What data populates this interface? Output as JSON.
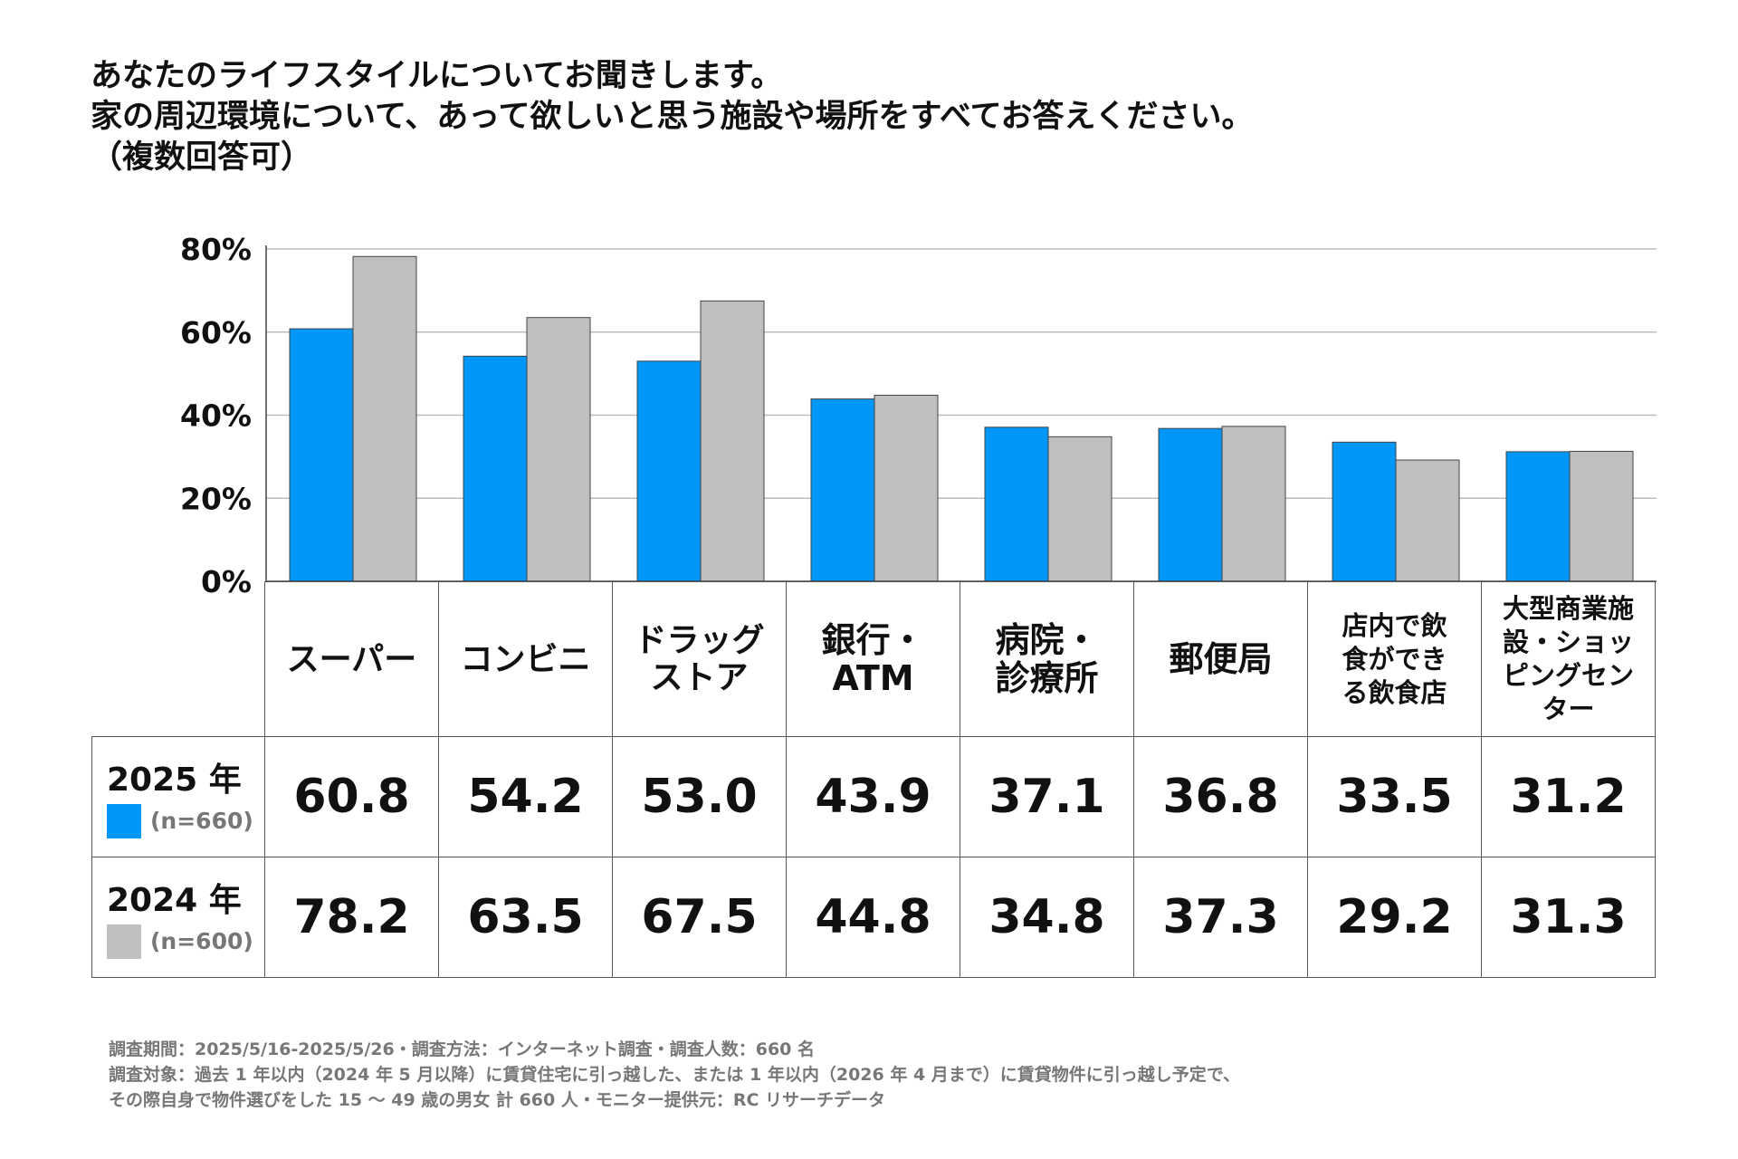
{
  "title_lines": [
    "あなたのライフスタイルについてお聞きします。",
    "家の周辺環境について、あって欲しいと思う施設や場所をすべてお答えください。",
    "（複数回答可）"
  ],
  "chart_data": {
    "type": "bar",
    "title": "あなたのライフスタイルについてお聞きします。家の周辺環境について、あって欲しいと思う施設や場所をすべてお答えください。（複数回答可）",
    "categories": [
      "スーパー",
      "コンビニ",
      "ドラッグストア",
      "銀行・ATM",
      "病院・診療所",
      "郵便局",
      "店内で飲食ができる飲食店",
      "大型商業施設・ショッピングセンター"
    ],
    "category_lines": [
      [
        "スーパー"
      ],
      [
        "コンビニ"
      ],
      [
        "ドラッグ",
        "ストア"
      ],
      [
        "銀行・",
        "ATM"
      ],
      [
        "病院・",
        "診療所"
      ],
      [
        "郵便局"
      ],
      [
        "店内で飲",
        "食ができ",
        "る飲食店"
      ],
      [
        "大型商業施",
        "設・ショッ",
        "ピングセン",
        "ター"
      ]
    ],
    "series": [
      {
        "name": "2025 年",
        "n_label": "(n=660)",
        "color": "#0096FA",
        "values": [
          60.8,
          54.2,
          53.0,
          43.9,
          37.1,
          36.8,
          33.5,
          31.2
        ],
        "display": [
          "60.8",
          "54.2",
          "53.0",
          "43.9",
          "37.1",
          "36.8",
          "33.5",
          "31.2"
        ]
      },
      {
        "name": "2024 年",
        "n_label": "(n=600)",
        "color": "#BFBFBF",
        "values": [
          78.2,
          63.5,
          67.5,
          44.8,
          34.8,
          37.3,
          29.2,
          31.3
        ],
        "display": [
          "78.2",
          "63.5",
          "67.5",
          "44.8",
          "34.8",
          "37.3",
          "29.2",
          "31.3"
        ]
      }
    ],
    "ylim": [
      0,
      80
    ],
    "yticks": [
      0,
      20,
      40,
      60,
      80
    ],
    "ytick_labels": [
      "0%",
      "20%",
      "40%",
      "60%",
      "80%"
    ],
    "grid": true,
    "xlabel": "",
    "ylabel": ""
  },
  "footnote_lines": [
    "調査期間：2025/5/16-2025/5/26・調査方法：インターネット調査・調査人数：660 名",
    "調査対象：過去 1 年以内（2024 年 5 月以降）に賃貸住宅に引っ越した、または 1 年以内（2026 年 4 月まで）に賃貸物件に引っ越し予定で、",
    "その際自身で物件選びをした 15 ～ 49 歳の男女 計 660 人・モニター提供元：RC リサーチデータ"
  ]
}
